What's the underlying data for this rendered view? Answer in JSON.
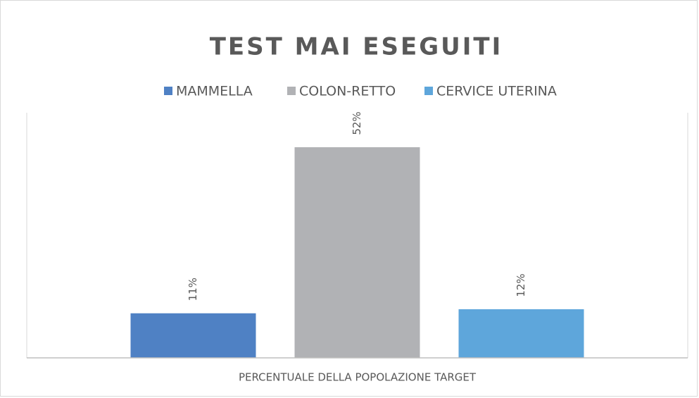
{
  "chart_data": {
    "type": "bar",
    "title": "TEST MAI ESEGUITI",
    "categories": [
      "PERCENTUALE DELLA POPOLAZIONE TARGET"
    ],
    "series": [
      {
        "name": "MAMMELLA",
        "color": "#4f81c4",
        "values": [
          11
        ],
        "value_labels": [
          "11%"
        ]
      },
      {
        "name": "COLON-RETTO",
        "color": "#b1b2b5",
        "values": [
          52
        ],
        "value_labels": [
          "52%"
        ]
      },
      {
        "name": "CERVICE UTERINA",
        "color": "#5ea6db",
        "values": [
          12
        ],
        "value_labels": [
          "12%"
        ]
      }
    ],
    "ylim": [
      0,
      60
    ],
    "legend": "top"
  }
}
